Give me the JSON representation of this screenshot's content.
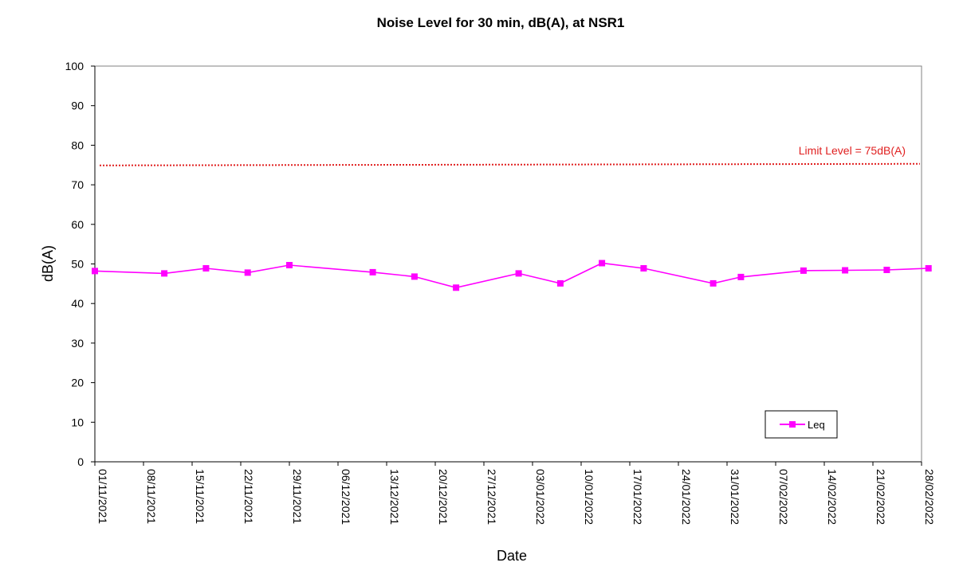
{
  "chart_data": {
    "type": "line",
    "title": "Noise Level for 30 min, dB(A), at NSR1",
    "xlabel": "Date",
    "ylabel": "dB(A)",
    "ylim": [
      0,
      100
    ],
    "yticks": [
      0,
      10,
      20,
      30,
      40,
      50,
      60,
      70,
      80,
      90,
      100
    ],
    "xlim": [
      "2021-11-01",
      "2022-02-28"
    ],
    "xticks": [
      "01/11/2021",
      "08/11/2021",
      "15/11/2021",
      "22/11/2021",
      "29/11/2021",
      "06/12/2021",
      "13/12/2021",
      "20/12/2021",
      "27/12/2021",
      "03/01/2022",
      "10/01/2022",
      "17/01/2022",
      "24/01/2022",
      "31/01/2022",
      "07/02/2022",
      "14/02/2022",
      "21/02/2022",
      "28/02/2022"
    ],
    "grid": false,
    "legend_position": "bottom-right",
    "limit": {
      "value": 75,
      "label": "Limit Level = 75dB(A)",
      "color": "#e02020"
    },
    "series": [
      {
        "name": "Leq",
        "color": "#ff00ff",
        "marker": "square",
        "x": [
          "2021-11-01",
          "2021-11-11",
          "2021-11-17",
          "2021-11-23",
          "2021-11-29",
          "2021-12-11",
          "2021-12-17",
          "2021-12-23",
          "2022-01-01",
          "2022-01-07",
          "2022-01-13",
          "2022-01-19",
          "2022-01-29",
          "2022-02-02",
          "2022-02-11",
          "2022-02-17",
          "2022-02-23",
          "2022-03-01"
        ],
        "y": [
          48.2,
          47.6,
          48.9,
          47.8,
          49.7,
          47.9,
          46.8,
          44.0,
          47.6,
          45.1,
          50.2,
          48.9,
          45.1,
          46.7,
          48.3,
          48.4,
          48.5,
          48.9
        ]
      }
    ]
  }
}
